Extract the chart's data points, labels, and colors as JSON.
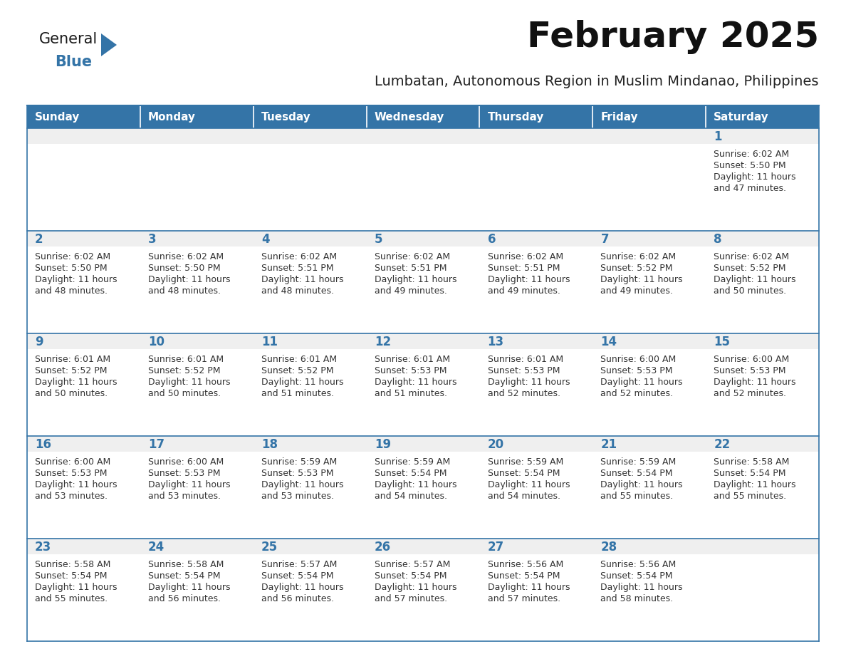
{
  "title": "February 2025",
  "subtitle": "Lumbatan, Autonomous Region in Muslim Mindanao, Philippines",
  "header_bg": "#3474A7",
  "header_text_color": "#FFFFFF",
  "cell_bg_white": "#FFFFFF",
  "cell_bg_gray": "#EFEFEF",
  "row_top_bg": "#EFEFEF",
  "border_color": "#3474A7",
  "day_number_color": "#3474A7",
  "text_color": "#333333",
  "days_of_week": [
    "Sunday",
    "Monday",
    "Tuesday",
    "Wednesday",
    "Thursday",
    "Friday",
    "Saturday"
  ],
  "calendar_data": [
    [
      null,
      null,
      null,
      null,
      null,
      null,
      {
        "day": 1,
        "sunrise": "6:02 AM",
        "sunset": "5:50 PM",
        "daylight": "11 hours and 47 minutes."
      }
    ],
    [
      {
        "day": 2,
        "sunrise": "6:02 AM",
        "sunset": "5:50 PM",
        "daylight": "11 hours and 48 minutes."
      },
      {
        "day": 3,
        "sunrise": "6:02 AM",
        "sunset": "5:50 PM",
        "daylight": "11 hours and 48 minutes."
      },
      {
        "day": 4,
        "sunrise": "6:02 AM",
        "sunset": "5:51 PM",
        "daylight": "11 hours and 48 minutes."
      },
      {
        "day": 5,
        "sunrise": "6:02 AM",
        "sunset": "5:51 PM",
        "daylight": "11 hours and 49 minutes."
      },
      {
        "day": 6,
        "sunrise": "6:02 AM",
        "sunset": "5:51 PM",
        "daylight": "11 hours and 49 minutes."
      },
      {
        "day": 7,
        "sunrise": "6:02 AM",
        "sunset": "5:52 PM",
        "daylight": "11 hours and 49 minutes."
      },
      {
        "day": 8,
        "sunrise": "6:02 AM",
        "sunset": "5:52 PM",
        "daylight": "11 hours and 50 minutes."
      }
    ],
    [
      {
        "day": 9,
        "sunrise": "6:01 AM",
        "sunset": "5:52 PM",
        "daylight": "11 hours and 50 minutes."
      },
      {
        "day": 10,
        "sunrise": "6:01 AM",
        "sunset": "5:52 PM",
        "daylight": "11 hours and 50 minutes."
      },
      {
        "day": 11,
        "sunrise": "6:01 AM",
        "sunset": "5:52 PM",
        "daylight": "11 hours and 51 minutes."
      },
      {
        "day": 12,
        "sunrise": "6:01 AM",
        "sunset": "5:53 PM",
        "daylight": "11 hours and 51 minutes."
      },
      {
        "day": 13,
        "sunrise": "6:01 AM",
        "sunset": "5:53 PM",
        "daylight": "11 hours and 52 minutes."
      },
      {
        "day": 14,
        "sunrise": "6:00 AM",
        "sunset": "5:53 PM",
        "daylight": "11 hours and 52 minutes."
      },
      {
        "day": 15,
        "sunrise": "6:00 AM",
        "sunset": "5:53 PM",
        "daylight": "11 hours and 52 minutes."
      }
    ],
    [
      {
        "day": 16,
        "sunrise": "6:00 AM",
        "sunset": "5:53 PM",
        "daylight": "11 hours and 53 minutes."
      },
      {
        "day": 17,
        "sunrise": "6:00 AM",
        "sunset": "5:53 PM",
        "daylight": "11 hours and 53 minutes."
      },
      {
        "day": 18,
        "sunrise": "5:59 AM",
        "sunset": "5:53 PM",
        "daylight": "11 hours and 53 minutes."
      },
      {
        "day": 19,
        "sunrise": "5:59 AM",
        "sunset": "5:54 PM",
        "daylight": "11 hours and 54 minutes."
      },
      {
        "day": 20,
        "sunrise": "5:59 AM",
        "sunset": "5:54 PM",
        "daylight": "11 hours and 54 minutes."
      },
      {
        "day": 21,
        "sunrise": "5:59 AM",
        "sunset": "5:54 PM",
        "daylight": "11 hours and 55 minutes."
      },
      {
        "day": 22,
        "sunrise": "5:58 AM",
        "sunset": "5:54 PM",
        "daylight": "11 hours and 55 minutes."
      }
    ],
    [
      {
        "day": 23,
        "sunrise": "5:58 AM",
        "sunset": "5:54 PM",
        "daylight": "11 hours and 55 minutes."
      },
      {
        "day": 24,
        "sunrise": "5:58 AM",
        "sunset": "5:54 PM",
        "daylight": "11 hours and 56 minutes."
      },
      {
        "day": 25,
        "sunrise": "5:57 AM",
        "sunset": "5:54 PM",
        "daylight": "11 hours and 56 minutes."
      },
      {
        "day": 26,
        "sunrise": "5:57 AM",
        "sunset": "5:54 PM",
        "daylight": "11 hours and 57 minutes."
      },
      {
        "day": 27,
        "sunrise": "5:56 AM",
        "sunset": "5:54 PM",
        "daylight": "11 hours and 57 minutes."
      },
      {
        "day": 28,
        "sunrise": "5:56 AM",
        "sunset": "5:54 PM",
        "daylight": "11 hours and 58 minutes."
      },
      null
    ]
  ],
  "num_rows": 5,
  "num_cols": 7,
  "logo_text1": "General",
  "logo_text2": "Blue",
  "logo_triangle_color": "#3474A7",
  "logo_text1_color": "#1a1a1a",
  "logo_text2_color": "#3474A7",
  "title_fontsize": 36,
  "subtitle_fontsize": 14,
  "header_fontsize": 11,
  "day_num_fontsize": 12,
  "cell_text_fontsize": 9
}
